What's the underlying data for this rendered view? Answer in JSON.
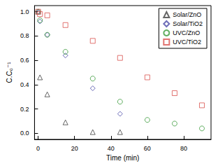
{
  "chart_data": {
    "type": "scatter",
    "xlabel": "Time (min)",
    "ylabel": "C.C₀⁻¹",
    "xlim": [
      -2,
      95
    ],
    "xticks": [
      0,
      20,
      40,
      60,
      80
    ],
    "ylim": [
      -0.05,
      1.05
    ],
    "yticks": [
      {
        "value": 0,
        "label": "0.0"
      },
      0.2,
      0.4,
      0.6,
      0.8,
      {
        "value": 1,
        "label": "1.0"
      }
    ],
    "grid": false,
    "legend": "upper right",
    "series": [
      {
        "name": "Solar/ZnO",
        "color": "#404040",
        "marker": "triangle",
        "x": [
          0,
          1,
          5,
          15,
          30,
          45
        ],
        "values": [
          1.0,
          0.46,
          0.32,
          0.09,
          0.01,
          0.01
        ]
      },
      {
        "name": "Solar/TiO2",
        "color": "#4b4ba8",
        "marker": "diamond",
        "x": [
          0,
          1,
          5,
          15,
          30,
          45
        ],
        "values": [
          1.0,
          0.92,
          0.81,
          0.64,
          0.37,
          0.16
        ]
      },
      {
        "name": "UVC/ZnO",
        "color": "#3a9a3a",
        "marker": "circle",
        "x": [
          0,
          1,
          5,
          15,
          30,
          45,
          60,
          75,
          90
        ],
        "values": [
          1.0,
          0.93,
          0.81,
          0.67,
          0.45,
          0.26,
          0.11,
          0.08,
          0.04
        ]
      },
      {
        "name": "UVC/TiO2",
        "color": "#d9534f",
        "marker": "square",
        "x": [
          0,
          1,
          5,
          15,
          30,
          45,
          60,
          75,
          90
        ],
        "values": [
          1.0,
          0.98,
          0.97,
          0.89,
          0.76,
          0.62,
          0.46,
          0.33,
          0.23
        ]
      }
    ]
  }
}
